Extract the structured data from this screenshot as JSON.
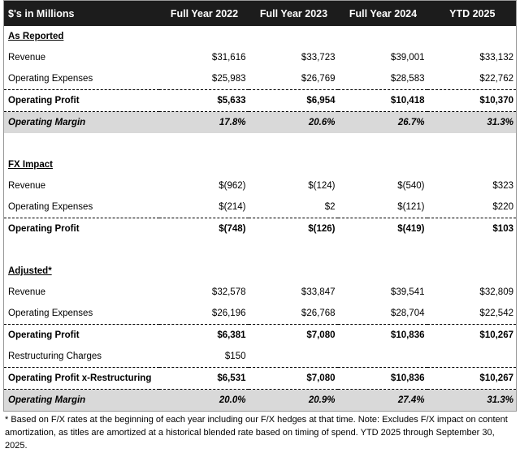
{
  "table": {
    "header": [
      "$'s in Millions",
      "Full Year 2022",
      "Full Year 2023",
      "Full Year 2024",
      "YTD 2025"
    ],
    "sections": [
      {
        "title": "As Reported",
        "rows": [
          {
            "label": "Revenue",
            "values": [
              "$31,616",
              "$33,723",
              "$39,001",
              "$33,132"
            ]
          },
          {
            "label": "Operating Expenses",
            "values": [
              "$25,983",
              "$26,769",
              "$28,583",
              "$22,762"
            ]
          },
          {
            "label": "Operating Profit",
            "values": [
              "$5,633",
              "$6,954",
              "$10,418",
              "$10,370"
            ]
          },
          {
            "label": "Operating Margin",
            "values": [
              "17.8%",
              "20.6%",
              "26.7%",
              "31.3%"
            ]
          }
        ]
      },
      {
        "title": "FX Impact",
        "rows": [
          {
            "label": "Revenue",
            "values": [
              "$(962)",
              "$(124)",
              "$(540)",
              "$323"
            ]
          },
          {
            "label": "Operating Expenses",
            "values": [
              "$(214)",
              "$2",
              "$(121)",
              "$220"
            ]
          },
          {
            "label": "Operating Profit",
            "values": [
              "$(748)",
              "$(126)",
              "$(419)",
              "$103"
            ]
          }
        ]
      },
      {
        "title": "Adjusted*",
        "rows": [
          {
            "label": "Revenue",
            "values": [
              "$32,578",
              "$33,847",
              "$39,541",
              "$32,809"
            ]
          },
          {
            "label": "Operating Expenses",
            "values": [
              "$26,196",
              "$26,768",
              "$28,704",
              "$22,542"
            ]
          },
          {
            "label": "Operating Profit",
            "values": [
              "$6,381",
              "$7,080",
              "$10,836",
              "$10,267"
            ]
          },
          {
            "label": "Restructuring Charges",
            "values": [
              "$150"
            ]
          },
          {
            "label": "Operating Profit x-Restructuring",
            "values": [
              "$6,531",
              "$7,080",
              "$10,836",
              "$10,267"
            ]
          },
          {
            "label": "Operating Margin",
            "values": [
              "20.0%",
              "20.9%",
              "27.4%",
              "31.3%"
            ]
          }
        ]
      }
    ]
  },
  "footnote": "* Based on F/X rates at the beginning of each year including our F/X hedges at that time. Note: Excludes F/X impact on content amortization, as titles are amortized at a historical blended rate based on timing of spend. YTD 2025 through September 30, 2025."
}
